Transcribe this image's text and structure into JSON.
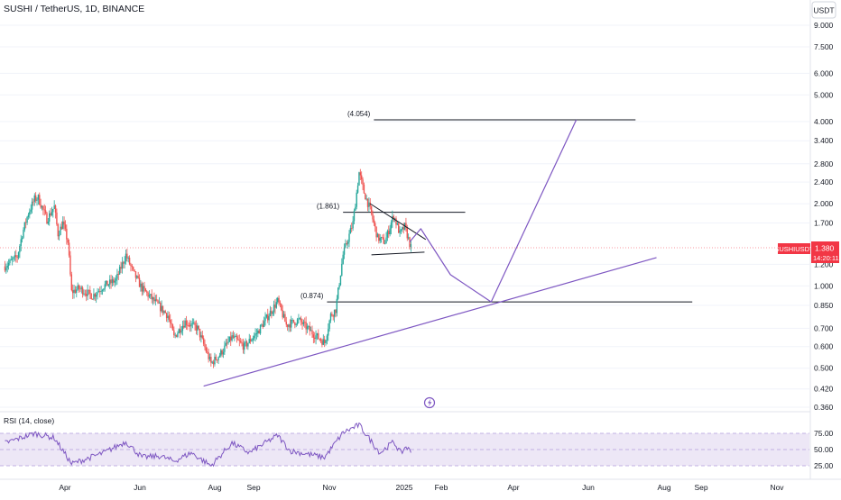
{
  "header": {
    "symbol_title": "SUSHI / TetherUS, 1D, BINANCE"
  },
  "price_axis": {
    "currency": "USDT",
    "ticks": [
      "9.000",
      "7.500",
      "6.000",
      "5.000",
      "4.000",
      "3.400",
      "2.800",
      "2.400",
      "2.000",
      "1.700",
      "1.200",
      "1.000",
      "0.850",
      "0.700",
      "0.600",
      "0.500",
      "0.420",
      "0.360"
    ]
  },
  "last_price_tag": {
    "symbol": "SUSHIUSDT",
    "price": "1.380",
    "countdown": "14:20:11"
  },
  "rsi_panel": {
    "label": "RSI (14, close)",
    "levels": [
      "75.00",
      "50.00",
      "25.00"
    ]
  },
  "time_axis": {
    "labels": [
      "Apr",
      "Jun",
      "Aug",
      "Sep",
      "Nov",
      "2025",
      "Feb",
      "Apr",
      "Jun",
      "Aug",
      "Sep",
      "Nov"
    ]
  },
  "annotations": [
    {
      "label": "(4.054)",
      "price": 4.054
    },
    {
      "label": "(1.861)",
      "price": 1.861
    },
    {
      "label": "(0.874)",
      "price": 0.874
    }
  ],
  "colors": {
    "up": "#26a69a",
    "down": "#ef5350",
    "projection": "#7e57c2",
    "level_line": "#131722",
    "rsi_line": "#7e57c2",
    "rsi_band": "#ede7f6",
    "price_tag": "#f23645",
    "grid": "#f0f3fa"
  },
  "icons": {
    "alert": "lightning-bolt-icon"
  },
  "chart_data": {
    "type": "candlestick",
    "title": "SUSHI / TetherUS, 1D, BINANCE",
    "scale": "log",
    "ylim": [
      0.36,
      9.0
    ],
    "x_range": [
      "2024-02-16",
      "2025-11-30"
    ],
    "grid": true,
    "last_price": 1.38,
    "price_path": [
      [
        "2024-02-20",
        1.18
      ],
      [
        "2024-03-01",
        1.28
      ],
      [
        "2024-03-05",
        1.55
      ],
      [
        "2024-03-10",
        1.85
      ],
      [
        "2024-03-15",
        2.08
      ],
      [
        "2024-03-18",
        2.1
      ],
      [
        "2024-03-25",
        1.75
      ],
      [
        "2024-03-31",
        1.95
      ],
      [
        "2024-04-03",
        1.55
      ],
      [
        "2024-04-07",
        1.7
      ],
      [
        "2024-04-11",
        1.45
      ],
      [
        "2024-04-14",
        0.95
      ],
      [
        "2024-04-20",
        0.98
      ],
      [
        "2024-05-01",
        0.92
      ],
      [
        "2024-05-10",
        1.0
      ],
      [
        "2024-05-20",
        1.05
      ],
      [
        "2024-05-28",
        1.3
      ],
      [
        "2024-06-03",
        1.12
      ],
      [
        "2024-06-10",
        0.98
      ],
      [
        "2024-06-20",
        0.88
      ],
      [
        "2024-07-01",
        0.78
      ],
      [
        "2024-07-06",
        0.65
      ],
      [
        "2024-07-15",
        0.74
      ],
      [
        "2024-07-25",
        0.7
      ],
      [
        "2024-08-05",
        0.52
      ],
      [
        "2024-08-12",
        0.56
      ],
      [
        "2024-08-22",
        0.65
      ],
      [
        "2024-09-01",
        0.6
      ],
      [
        "2024-09-12",
        0.68
      ],
      [
        "2024-09-22",
        0.8
      ],
      [
        "2024-09-28",
        0.88
      ],
      [
        "2024-10-05",
        0.72
      ],
      [
        "2024-10-15",
        0.75
      ],
      [
        "2024-10-25",
        0.68
      ],
      [
        "2024-11-05",
        0.62
      ],
      [
        "2024-11-10",
        0.78
      ],
      [
        "2024-11-14",
        0.82
      ],
      [
        "2024-11-20",
        1.3
      ],
      [
        "2024-11-28",
        1.7
      ],
      [
        "2024-12-03",
        2.6
      ],
      [
        "2024-12-07",
        2.2
      ],
      [
        "2024-12-12",
        1.9
      ],
      [
        "2024-12-18",
        1.5
      ],
      [
        "2024-12-24",
        1.45
      ],
      [
        "2024-12-31",
        1.82
      ],
      [
        "2025-01-05",
        1.55
      ],
      [
        "2025-01-09",
        1.65
      ],
      [
        "2025-01-14",
        1.38
      ]
    ],
    "projection_path": [
      [
        "2025-01-13",
        1.45
      ],
      [
        "2025-01-22",
        1.62
      ],
      [
        "2025-02-15",
        1.1
      ],
      [
        "2025-03-20",
        0.874
      ],
      [
        "2025-05-28",
        4.054
      ]
    ],
    "symmetrical_triangle": {
      "upper": [
        [
          "2024-12-12",
          2.0
        ],
        [
          "2025-01-26",
          1.48
        ]
      ],
      "lower": [
        [
          "2024-12-13",
          1.3
        ],
        [
          "2025-01-25",
          1.33
        ]
      ]
    },
    "support_trendline": [
      [
        "2024-07-30",
        0.43
      ],
      [
        "2025-08-01",
        1.27
      ]
    ],
    "levels": [
      {
        "label": "(4.054)",
        "price": 4.054,
        "from": "2024-12-15",
        "to": "2025-07-15"
      },
      {
        "label": "(1.861)",
        "price": 1.861,
        "from": "2024-11-20",
        "to": "2025-02-27"
      },
      {
        "label": "(0.874)",
        "price": 0.874,
        "from": "2024-11-07",
        "to": "2025-08-30"
      }
    ],
    "rsi_path": [
      [
        "2024-02-20",
        60
      ],
      [
        "2024-03-15",
        75
      ],
      [
        "2024-03-31",
        68
      ],
      [
        "2024-04-14",
        28
      ],
      [
        "2024-04-25",
        35
      ],
      [
        "2024-05-10",
        45
      ],
      [
        "2024-05-28",
        62
      ],
      [
        "2024-06-10",
        38
      ],
      [
        "2024-06-25",
        40
      ],
      [
        "2024-07-06",
        32
      ],
      [
        "2024-07-20",
        45
      ],
      [
        "2024-08-05",
        25
      ],
      [
        "2024-08-22",
        60
      ],
      [
        "2024-09-05",
        45
      ],
      [
        "2024-09-28",
        72
      ],
      [
        "2024-10-08",
        48
      ],
      [
        "2024-10-25",
        42
      ],
      [
        "2024-11-05",
        38
      ],
      [
        "2024-11-20",
        76
      ],
      [
        "2024-12-03",
        88
      ],
      [
        "2024-12-12",
        65
      ],
      [
        "2024-12-20",
        45
      ],
      [
        "2024-12-31",
        62
      ],
      [
        "2025-01-06",
        44
      ],
      [
        "2025-01-10",
        55
      ],
      [
        "2025-01-14",
        46
      ]
    ]
  }
}
